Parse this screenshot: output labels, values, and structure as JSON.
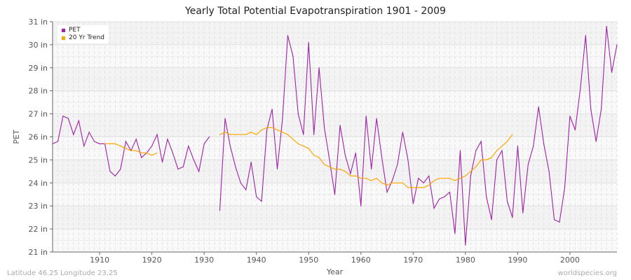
{
  "title": "Yearly Total Potential Evapotranspiration 1901 - 2009",
  "footer_left": "Latitude 46.25 Longitude 23.25",
  "footer_right": "worldspecies.org",
  "chart_data": {
    "type": "line",
    "title": "Yearly Total Potential Evapotranspiration 1901 - 2009",
    "xlabel": "Year",
    "ylabel": "PET",
    "xlim": [
      1901,
      2009
    ],
    "ylim": [
      21,
      31
    ],
    "yticks": [
      "21 in",
      "22 in",
      "23 in",
      "24 in",
      "25 in",
      "26 in",
      "27 in",
      "28 in",
      "29 in",
      "30 in",
      "31 in"
    ],
    "xticks": [
      "1910",
      "1920",
      "1930",
      "1940",
      "1950",
      "1960",
      "1970",
      "1980",
      "1990",
      "2000"
    ],
    "grid": true,
    "legend": "top-left",
    "series": [
      {
        "name": "PET",
        "color": "#a020a8",
        "start_year": 1901,
        "values": [
          25.7,
          25.8,
          26.9,
          26.8,
          26.1,
          26.7,
          25.6,
          26.2,
          25.8,
          25.7,
          25.7,
          24.5,
          24.3,
          24.6,
          25.8,
          25.4,
          25.9,
          25.1,
          25.3,
          25.6,
          26.1,
          24.9,
          25.9,
          25.3,
          24.6,
          24.7,
          25.6,
          25.0,
          24.5,
          25.7,
          26.0,
          null,
          22.8,
          26.8,
          25.6,
          24.7,
          24.0,
          23.7,
          24.9,
          23.4,
          23.2,
          26.3,
          27.2,
          24.6,
          26.8,
          30.4,
          29.5,
          27.0,
          26.1,
          30.1,
          26.1,
          29.0,
          26.4,
          25.0,
          23.5,
          26.5,
          25.2,
          24.4,
          25.3,
          23.0,
          26.9,
          24.6,
          26.8,
          25.1,
          23.6,
          24.1,
          24.8,
          26.2,
          25.0,
          23.1,
          24.2,
          24.0,
          24.3,
          22.9,
          23.3,
          23.4,
          23.6,
          21.8,
          25.4,
          21.3,
          24.3,
          25.4,
          25.8,
          23.4,
          22.4,
          25.0,
          25.4,
          23.2,
          22.5,
          25.6,
          22.7,
          24.8,
          25.6,
          27.3,
          25.7,
          24.5,
          22.4,
          22.3,
          23.8,
          26.9,
          26.3,
          28.1,
          30.4,
          27.2,
          25.8,
          27.2,
          30.8,
          28.8,
          30.0
        ]
      },
      {
        "name": "20 Yr Trend",
        "color": "#ffa500",
        "start_year": 1911,
        "values": [
          25.7,
          25.7,
          25.7,
          25.6,
          25.5,
          25.4,
          25.4,
          25.3,
          25.3,
          25.2,
          25.3,
          null,
          null,
          null,
          null,
          null,
          null,
          null,
          null,
          null,
          null,
          null,
          26.1,
          26.2,
          26.1,
          26.1,
          26.1,
          26.1,
          26.2,
          26.1,
          26.3,
          26.4,
          26.4,
          26.3,
          26.2,
          26.1,
          25.9,
          25.7,
          25.6,
          25.5,
          25.2,
          25.1,
          24.8,
          24.7,
          24.6,
          24.6,
          24.5,
          24.3,
          24.3,
          24.2,
          24.2,
          24.1,
          24.2,
          24.0,
          23.9,
          24.0,
          24.0,
          24.0,
          23.8,
          23.8,
          23.8,
          23.8,
          23.9,
          24.1,
          24.2,
          24.2,
          24.2,
          24.1,
          24.2,
          24.3,
          24.5,
          24.7,
          25.0,
          25.0,
          25.1,
          25.4,
          25.6,
          25.8,
          26.1
        ]
      }
    ]
  }
}
